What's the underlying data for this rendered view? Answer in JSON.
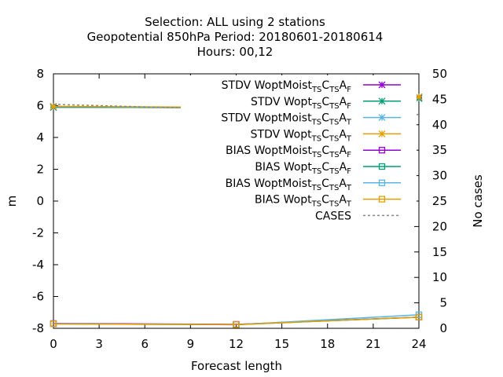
{
  "chart_data": {
    "type": "line",
    "title_lines": [
      "Selection: ALL using     2 stations",
      "Geopotential 850hPa   Period: 20180601-20180614",
      "Hours:  00,12"
    ],
    "xlabel": "Forecast length",
    "ylabel": "m",
    "y2label": "No cases",
    "xlim": [
      0,
      24
    ],
    "ylim": [
      -8,
      8
    ],
    "y2lim": [
      0,
      50
    ],
    "xticks": [
      0,
      3,
      6,
      9,
      12,
      15,
      18,
      21,
      24
    ],
    "yticks": [
      -8,
      -6,
      -4,
      -2,
      0,
      2,
      4,
      6,
      8
    ],
    "y2ticks": [
      0,
      5,
      10,
      15,
      20,
      25,
      30,
      35,
      40,
      45,
      50
    ],
    "grid": false,
    "legend_position": "top-right",
    "x": [
      0,
      12,
      24
    ],
    "series": [
      {
        "name_base": "STDV WoptMoist",
        "suffix": "F",
        "color": "#9400d3",
        "marker": "star",
        "axis": "y",
        "values": [
          5.9,
          5.87,
          6.5
        ]
      },
      {
        "name_base": "STDV Wopt",
        "suffix": "F",
        "color": "#009e73",
        "marker": "star",
        "axis": "y",
        "values": [
          5.9,
          5.87,
          6.45
        ]
      },
      {
        "name_base": "STDV WoptMoist",
        "suffix": "T",
        "color": "#56b4e9",
        "marker": "star",
        "axis": "y",
        "values": [
          5.95,
          5.88,
          6.55
        ]
      },
      {
        "name_base": "STDV Wopt",
        "suffix": "T",
        "color": "#e69f00",
        "marker": "star",
        "axis": "y",
        "values": [
          5.95,
          5.9,
          6.55
        ]
      },
      {
        "name_base": "BIAS WoptMoist",
        "suffix": "F",
        "color": "#9400d3",
        "marker": "square",
        "axis": "y",
        "values": [
          -7.7,
          -7.75,
          -7.3
        ]
      },
      {
        "name_base": "BIAS Wopt",
        "suffix": "F",
        "color": "#009e73",
        "marker": "square",
        "axis": "y",
        "values": [
          -7.72,
          -7.77,
          -7.3
        ]
      },
      {
        "name_base": "BIAS WoptMoist",
        "suffix": "T",
        "color": "#56b4e9",
        "marker": "square",
        "axis": "y",
        "values": [
          -7.72,
          -7.77,
          -7.15
        ]
      },
      {
        "name_base": "BIAS Wopt",
        "suffix": "T",
        "color": "#e69f00",
        "marker": "square",
        "axis": "y",
        "values": [
          -7.72,
          -7.77,
          -7.3
        ]
      },
      {
        "name": "CASES",
        "color": "#888888",
        "dashed": true,
        "marker": "none",
        "axis": "y2",
        "values": [
          44,
          43,
          42
        ]
      }
    ]
  }
}
